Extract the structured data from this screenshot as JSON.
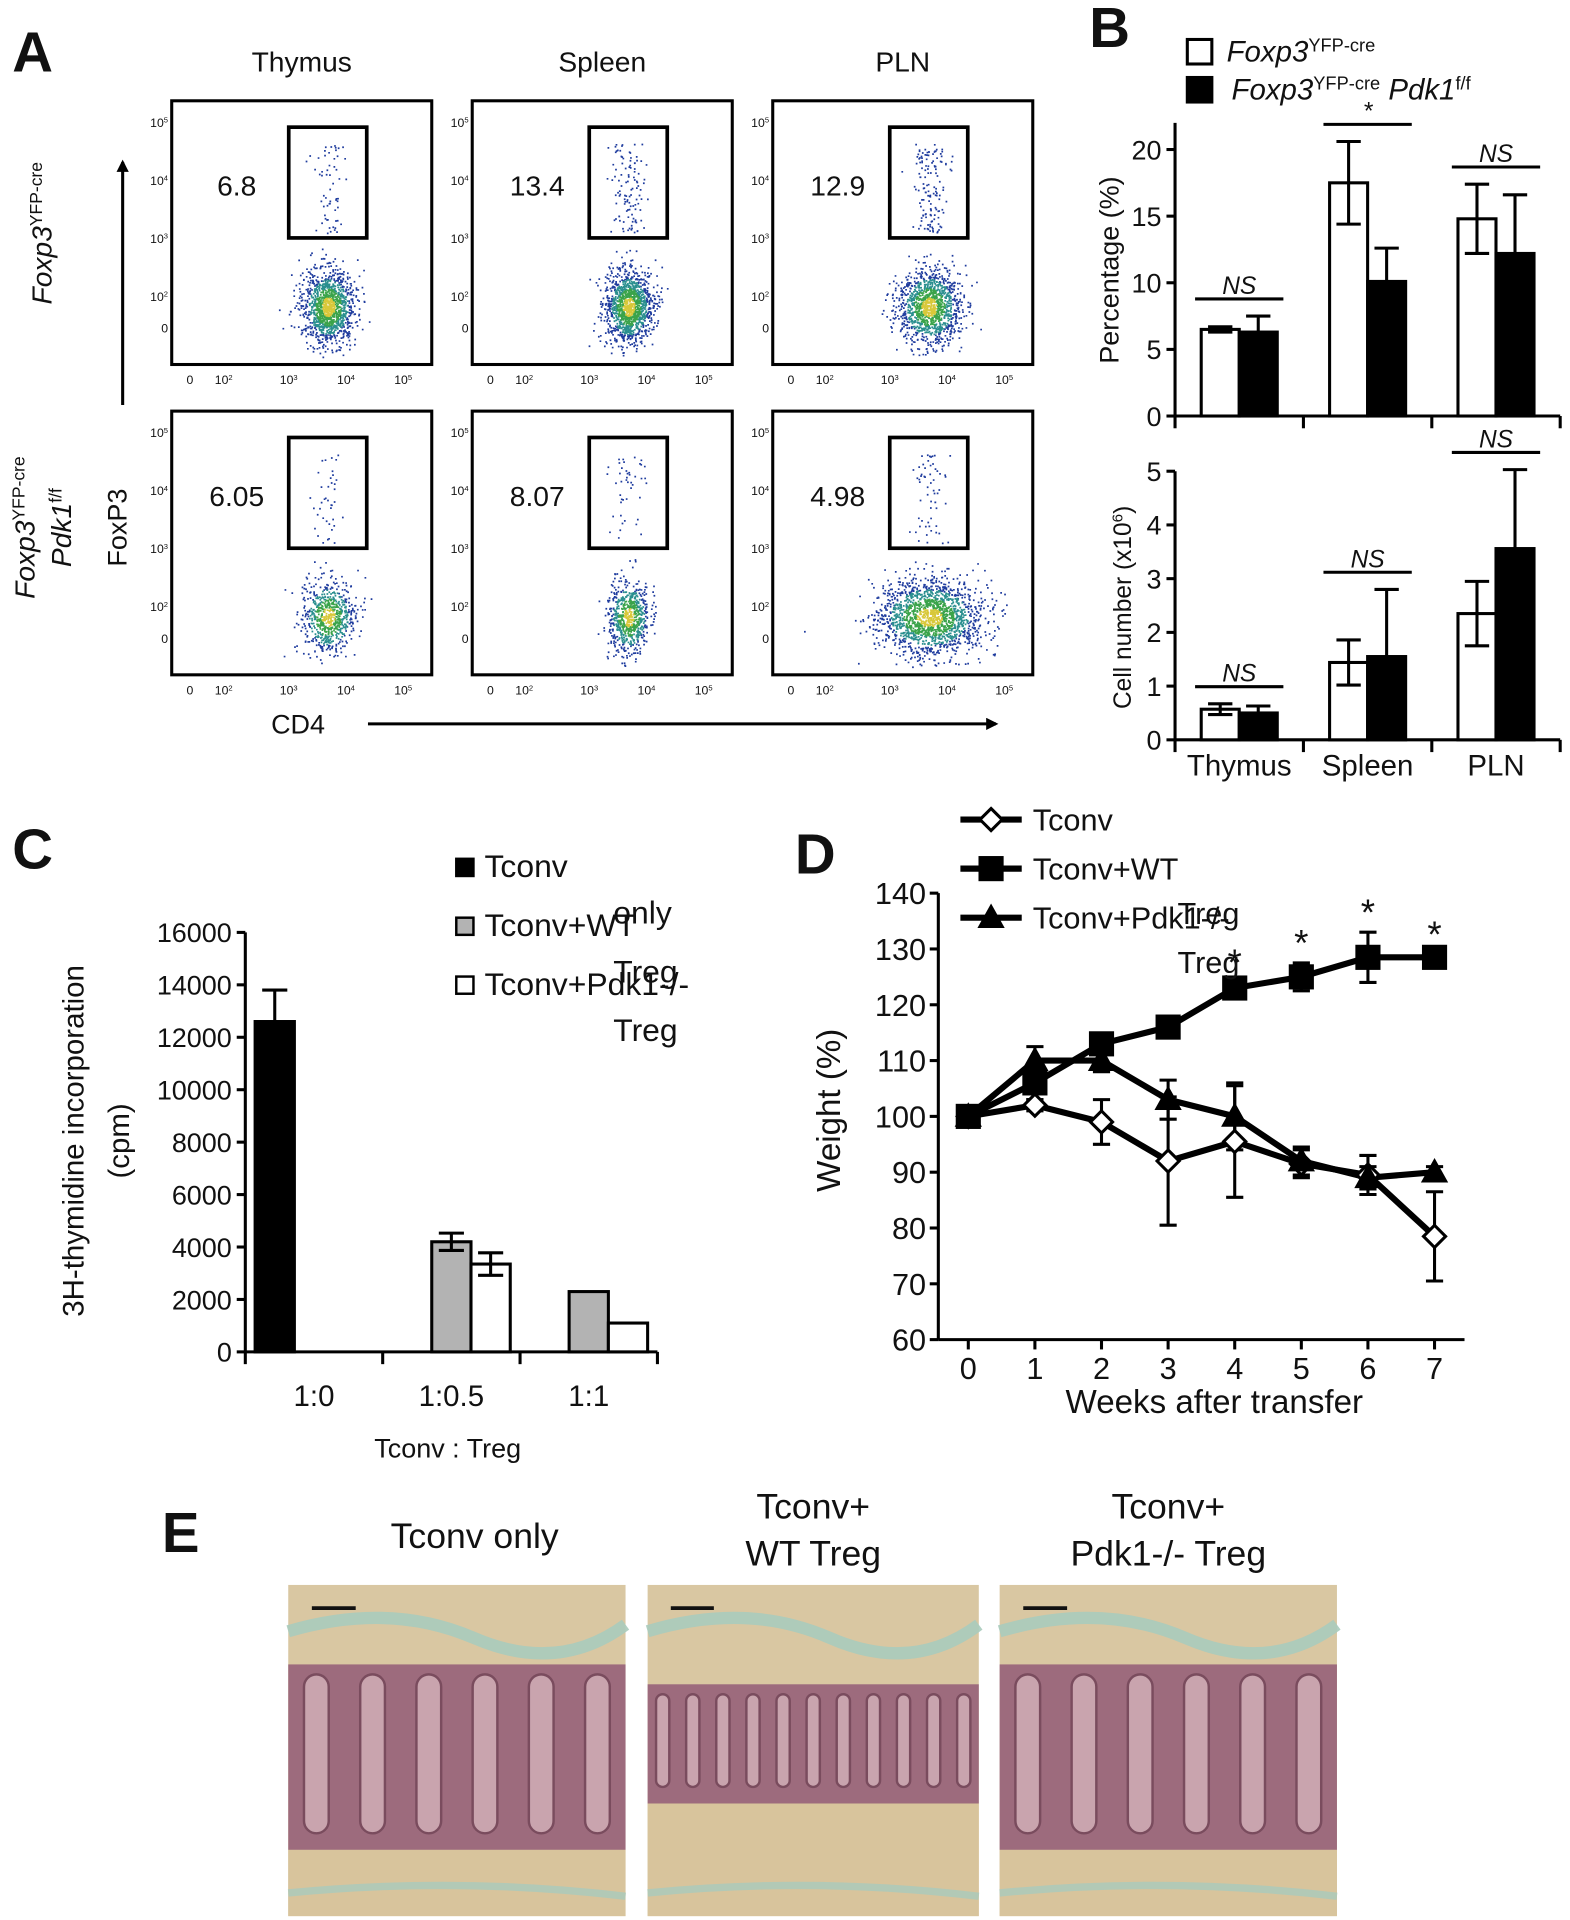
{
  "panel_labels": {
    "a": "A",
    "b": "B",
    "c": "C",
    "d": "D",
    "e": "E"
  },
  "panel_a": {
    "columns": [
      "Thymus",
      "Spleen",
      "PLN"
    ],
    "rows": [
      {
        "label": [
          [
            {
              "text": "Foxp3",
              "italic": true
            },
            {
              "text": "YFP-cre",
              "sup": true
            }
          ]
        ],
        "gates": [
          6.8,
          13.4,
          12.9
        ]
      },
      {
        "label": [
          [
            {
              "text": "Foxp3",
              "italic": true
            },
            {
              "text": "YFP-cre",
              "sup": true
            }
          ],
          [
            {
              "text": "Pdk1",
              "italic": true
            },
            {
              "text": "f/f",
              "sup": true
            }
          ]
        ],
        "gates": [
          6.05,
          8.07,
          4.98
        ]
      }
    ],
    "y_axis": "FoxP3",
    "x_axis": "CD4",
    "flow_yticks": [
      [
        {
          "text": "10"
        },
        {
          "text": "5",
          "sup": true
        }
      ],
      [
        {
          "text": "10"
        },
        {
          "text": "4",
          "sup": true
        }
      ],
      [
        {
          "text": "10"
        },
        {
          "text": "3",
          "sup": true
        }
      ],
      [
        {
          "text": "10"
        },
        {
          "text": "2",
          "sup": true
        }
      ],
      [
        {
          "text": "0"
        }
      ]
    ],
    "flow_xticks": [
      [
        {
          "text": "0"
        }
      ],
      [
        {
          "text": "10"
        },
        {
          "text": "2",
          "sup": true
        }
      ],
      [
        {
          "text": "10"
        },
        {
          "text": "3",
          "sup": true
        }
      ],
      [
        {
          "text": "10"
        },
        {
          "text": "4",
          "sup": true
        }
      ],
      [
        {
          "text": "10"
        },
        {
          "text": "5",
          "sup": true
        }
      ]
    ]
  },
  "chart_data": [
    {
      "type": "bar",
      "ylabel": "Percentage (%)",
      "ylim": [
        0,
        22
      ],
      "yticks": [
        0,
        5,
        10,
        15,
        20
      ],
      "series": [
        {
          "label": [
            {
              "text": "Foxp3",
              "italic": true
            },
            {
              "text": "YFP-cre",
              "sup": true
            }
          ],
          "color": "#ffffff",
          "values": [
            6.5,
            17.5,
            14.8
          ],
          "errors": [
            0.2,
            3.1,
            2.6
          ]
        },
        {
          "label": [
            {
              "text": "Foxp3",
              "italic": true
            },
            {
              "text": "YFP-cre",
              "sup": true
            },
            {
              "text": " Pdk1",
              "italic": true
            },
            {
              "text": "f/f",
              "sup": true
            }
          ],
          "color": "#000000",
          "values": [
            6.3,
            10.1,
            12.2
          ],
          "errors": [
            1.2,
            2.5,
            4.4
          ]
        }
      ],
      "annotations": [
        "NS",
        "*",
        "NS"
      ]
    },
    {
      "type": "bar",
      "ylabel": [
        {
          "text": "Cell number (x10"
        },
        {
          "text": "6",
          "sup": true
        },
        {
          "text": ")"
        }
      ],
      "categories": [
        "Thymus",
        "Spleen",
        "PLN"
      ],
      "ylim": [
        0,
        5
      ],
      "yticks": [
        0,
        1,
        2,
        3,
        4,
        5
      ],
      "series": [
        {
          "color": "#ffffff",
          "values": [
            0.57,
            1.44,
            2.35
          ],
          "errors": [
            0.1,
            0.42,
            0.6
          ]
        },
        {
          "color": "#000000",
          "values": [
            0.5,
            1.55,
            3.56
          ],
          "errors": [
            0.13,
            1.25,
            1.47
          ]
        }
      ],
      "annotations": [
        "NS",
        "NS",
        "NS"
      ]
    },
    {
      "type": "bar",
      "ylabel": [
        "3H-thymidine incorporation",
        "(cpm)"
      ],
      "xlabel": "Tconv : Treg",
      "categories": [
        "1:0",
        "1:0.5",
        "1:1"
      ],
      "ylim": [
        0,
        16000
      ],
      "yticks": [
        0,
        2000,
        4000,
        6000,
        8000,
        10000,
        12000,
        14000,
        16000
      ],
      "series": [
        {
          "name": "Tconv only",
          "color": "#000000",
          "values": [
            12600,
            null,
            null
          ],
          "errors": [
            1200,
            null,
            null
          ]
        },
        {
          "name": "Tconv+WT Treg",
          "color": "#b3b3b3",
          "values": [
            null,
            4200,
            2300
          ],
          "errors": [
            null,
            330,
            null
          ]
        },
        {
          "name": "Tconv+Pdk1-/- Treg",
          "color": "#ffffff",
          "values": [
            null,
            3350,
            1100
          ],
          "errors": [
            null,
            430,
            null
          ]
        }
      ]
    },
    {
      "type": "line",
      "ylabel": "Weight (%)",
      "xlabel": "Weeks after transfer",
      "x": [
        0,
        1,
        2,
        3,
        4,
        5,
        6,
        7
      ],
      "xlim": [
        -0.45,
        7.45
      ],
      "xticks": [
        0,
        1,
        2,
        3,
        4,
        5,
        6,
        7
      ],
      "ylim": [
        60,
        140
      ],
      "yticks": [
        60,
        70,
        80,
        90,
        100,
        110,
        120,
        130,
        140
      ],
      "series": [
        {
          "name": "Tconv",
          "color": "#ffffff",
          "marker": "diamond",
          "values": [
            100,
            102,
            99,
            92,
            95.5,
            91.5,
            89.5,
            78.5
          ],
          "errors": [
            0,
            1,
            4,
            11.5,
            10,
            2.5,
            3.5,
            8
          ]
        },
        {
          "name": "Tconv+WT Treg",
          "color": "#000000",
          "marker": "square",
          "values": [
            100,
            106,
            113,
            116,
            123,
            125,
            128.5,
            128.5
          ],
          "errors": [
            0,
            3,
            1,
            0.5,
            1,
            2.5,
            4.5,
            0.5
          ]
        },
        {
          "name": "Tconv+Pdk1-/- Treg",
          "color": "#000000",
          "marker": "triangle",
          "values": [
            100,
            110,
            110,
            103,
            100,
            92,
            89,
            90
          ],
          "errors": [
            0,
            2.5,
            2,
            3.5,
            6,
            2.5,
            2,
            1
          ]
        }
      ],
      "annotations": [
        {
          "x": 4,
          "text": "*"
        },
        {
          "x": 5,
          "text": "*"
        },
        {
          "x": 6,
          "text": "*"
        },
        {
          "x": 7,
          "text": "*"
        }
      ]
    }
  ],
  "panel_e": {
    "images": [
      {
        "title": [
          "Tconv only"
        ]
      },
      {
        "title": [
          "Tconv+",
          "WT Treg"
        ]
      },
      {
        "title": [
          "Tconv+",
          "Pdk1-/- Treg"
        ]
      }
    ]
  }
}
